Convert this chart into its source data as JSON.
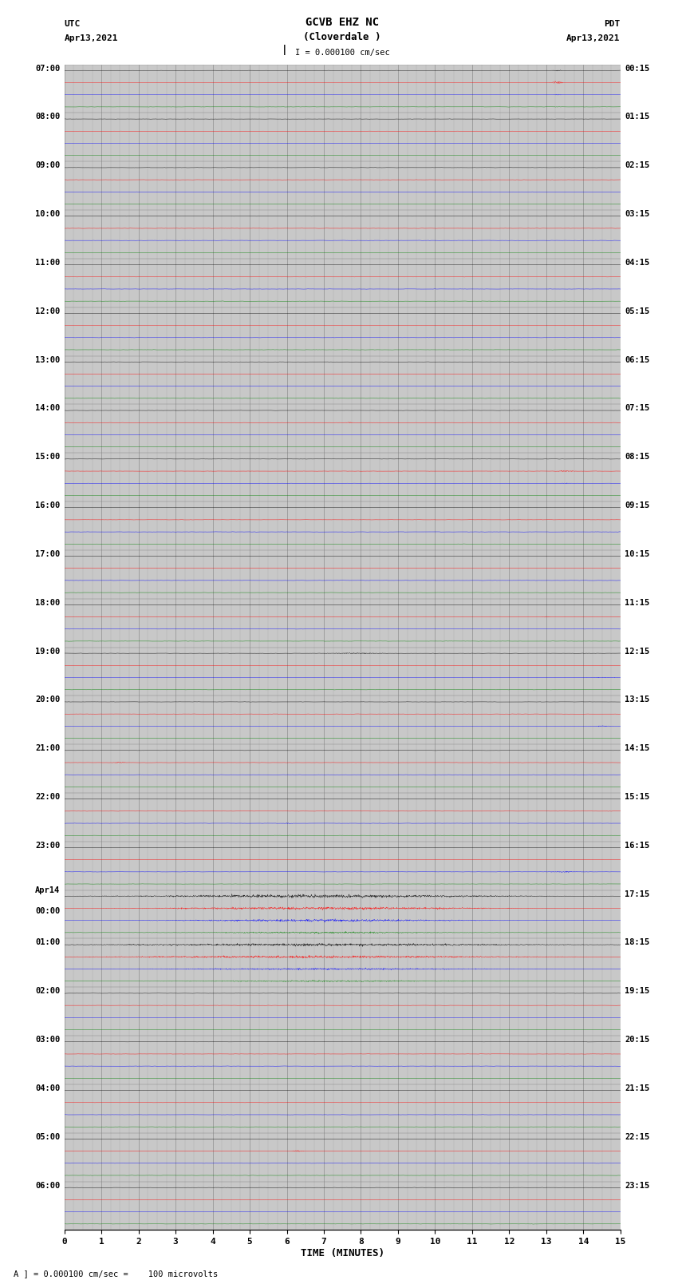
{
  "title_line1": "GCVB EHZ NC",
  "title_line2": "(Cloverdale )",
  "title_scale": "I = 0.000100 cm/sec",
  "left_header_line1": "UTC",
  "left_header_line2": "Apr13,2021",
  "right_header_line1": "PDT",
  "right_header_line2": "Apr13,2021",
  "left_time_labels": [
    "07:00",
    "08:00",
    "09:00",
    "10:00",
    "11:00",
    "12:00",
    "13:00",
    "14:00",
    "15:00",
    "16:00",
    "17:00",
    "18:00",
    "19:00",
    "20:00",
    "21:00",
    "22:00",
    "23:00",
    "Apr14",
    "01:00",
    "02:00",
    "03:00",
    "04:00",
    "05:00",
    "06:00"
  ],
  "left_time_labels_row17_extra": "00:00",
  "right_time_labels": [
    "00:15",
    "01:15",
    "02:15",
    "03:15",
    "04:15",
    "05:15",
    "06:15",
    "07:15",
    "08:15",
    "09:15",
    "10:15",
    "11:15",
    "12:15",
    "13:15",
    "14:15",
    "15:15",
    "16:15",
    "17:15",
    "18:15",
    "19:15",
    "20:15",
    "21:15",
    "22:15",
    "23:15"
  ],
  "xlabel": "TIME (MINUTES)",
  "footnote": "A ] = 0.000100 cm/sec =    100 microvolts",
  "n_rows": 24,
  "traces_per_row": 4,
  "colors": [
    "black",
    "red",
    "blue",
    "green"
  ],
  "x_ticks": [
    0,
    1,
    2,
    3,
    4,
    5,
    6,
    7,
    8,
    9,
    10,
    11,
    12,
    13,
    14,
    15
  ],
  "bg_color": "#c8c8c8",
  "noise_scale": 0.02,
  "trace_amplitude": 0.1
}
